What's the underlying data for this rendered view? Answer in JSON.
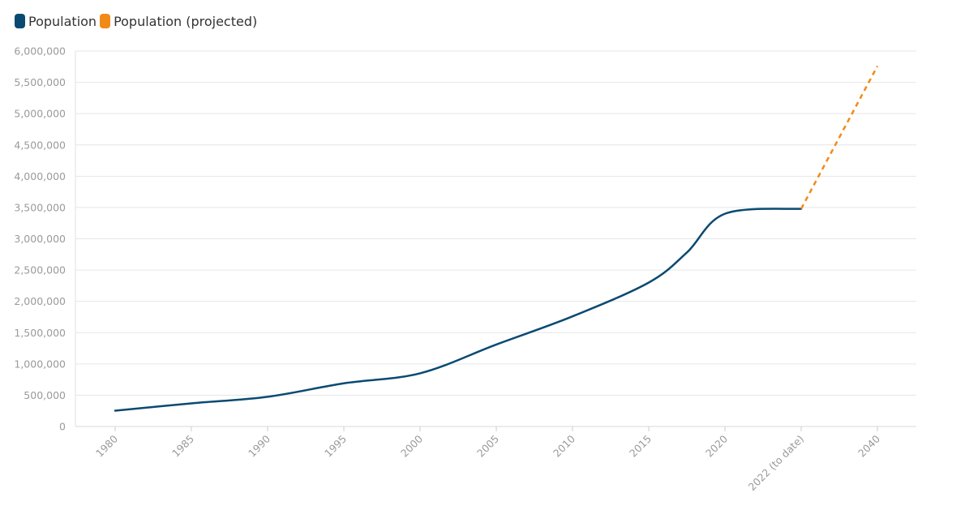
{
  "legend": {
    "items": [
      {
        "label": "Population",
        "color": "#0a4a72"
      },
      {
        "label": "Population (projected)",
        "color": "#f28a17"
      }
    ]
  },
  "chart_data": {
    "type": "line",
    "title": "",
    "xlabel": "",
    "ylabel": "",
    "categories": [
      "1980",
      "1985",
      "1990",
      "1995",
      "2000",
      "2005",
      "2010",
      "2015",
      "2020",
      "2022 (to date)",
      "2040"
    ],
    "y_ticks": [
      "0",
      "500,000",
      "1,000,000",
      "1,500,000",
      "2,000,000",
      "2,500,000",
      "3,000,000",
      "3,500,000",
      "4,000,000",
      "4,500,000",
      "5,000,000",
      "5,500,000",
      "6,000,000"
    ],
    "ylim": [
      0,
      6000000
    ],
    "grid": true,
    "legend_position": "top-left",
    "series": [
      {
        "name": "Population",
        "color": "#0a4a72",
        "style": "solid",
        "points": [
          {
            "x": 0,
            "y": 253000
          },
          {
            "x": 1,
            "y": 370000
          },
          {
            "x": 2,
            "y": 475000
          },
          {
            "x": 3,
            "y": 690000
          },
          {
            "x": 4,
            "y": 850000
          },
          {
            "x": 5,
            "y": 1310000
          },
          {
            "x": 6,
            "y": 1760000
          },
          {
            "x": 7,
            "y": 2300000
          },
          {
            "x": 7.5,
            "y": 2780000
          },
          {
            "x": 8,
            "y": 3400000
          },
          {
            "x": 9,
            "y": 3480000
          }
        ]
      },
      {
        "name": "Population (projected)",
        "color": "#f28a17",
        "style": "dashed",
        "points": [
          {
            "x": 9,
            "y": 3480000
          },
          {
            "x": 10,
            "y": 5760000
          }
        ]
      }
    ]
  }
}
